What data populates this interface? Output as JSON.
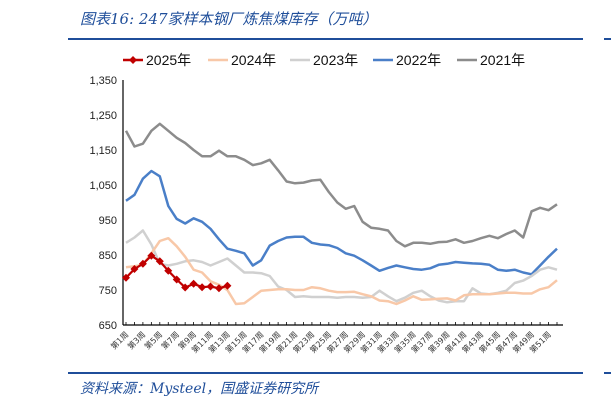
{
  "title": "图表16:  247家样本钢厂炼焦煤库存（万吨）",
  "source": "资料来源：Mysteel，国盛证券研究所",
  "chart_data": {
    "type": "line",
    "title": "247家样本钢厂炼焦煤库存（万吨）",
    "xlabel": "",
    "ylabel": "",
    "ylim": [
      650,
      1350
    ],
    "yticks": [
      "650",
      "750",
      "850",
      "950",
      "1,050",
      "1,150",
      "1,250",
      "1,350"
    ],
    "ytick_values": [
      650,
      750,
      850,
      950,
      1050,
      1150,
      1250,
      1350
    ],
    "xticks": [
      "第1周",
      "第3周",
      "第5周",
      "第7周",
      "第9周",
      "第11周",
      "第13周",
      "第15周",
      "第17周",
      "第19周",
      "第21周",
      "第23周",
      "第25周",
      "第27周",
      "第29周",
      "第31周",
      "第33周",
      "第35周",
      "第37周",
      "第39周",
      "第41周",
      "第43周",
      "第45周",
      "第47周",
      "第49周",
      "第51周"
    ],
    "weeks": 52,
    "legend_position": "top",
    "grid": false,
    "series": [
      {
        "name": "2025年",
        "color": "#c00000",
        "marker": "diamond",
        "values": [
          785,
          810,
          825,
          848,
          832,
          805,
          780,
          757,
          768,
          758,
          760,
          755,
          762
        ]
      },
      {
        "name": "2024年",
        "color": "#f8c8a8",
        "values": [
          815,
          818,
          822,
          855,
          890,
          898,
          875,
          845,
          808,
          800,
          775,
          765,
          750,
          710,
          712,
          730,
          748,
          750,
          752,
          752,
          750,
          750,
          758,
          755,
          748,
          744,
          744,
          745,
          738,
          732,
          720,
          718,
          710,
          720,
          732,
          722,
          723,
          725,
          726,
          720,
          735,
          738,
          738,
          738,
          740,
          742,
          742,
          740,
          740,
          752,
          758,
          778
        ]
      },
      {
        "name": "2023年",
        "color": "#d0d0d0",
        "values": [
          885,
          900,
          920,
          880,
          825,
          820,
          825,
          832,
          835,
          830,
          820,
          830,
          840,
          820,
          800,
          800,
          798,
          790,
          760,
          750,
          730,
          732,
          730,
          730,
          730,
          728,
          730,
          730,
          728,
          730,
          748,
          732,
          718,
          728,
          742,
          748,
          732,
          720,
          715,
          718,
          718,
          755,
          740,
          738,
          742,
          748,
          770,
          777,
          790,
          808,
          815,
          808
        ]
      },
      {
        "name": "2022年",
        "color": "#4a7fc8",
        "values": [
          1005,
          1022,
          1068,
          1090,
          1075,
          990,
          953,
          940,
          955,
          945,
          925,
          895,
          868,
          862,
          855,
          820,
          835,
          877,
          890,
          900,
          902,
          902,
          885,
          880,
          878,
          870,
          855,
          848,
          835,
          820,
          805,
          813,
          820,
          815,
          810,
          808,
          812,
          822,
          825,
          830,
          828,
          826,
          825,
          822,
          808,
          805,
          808,
          800,
          795,
          820,
          845,
          868
        ]
      },
      {
        "name": "2021年",
        "color": "#8c8c8c",
        "values": [
          1205,
          1160,
          1168,
          1205,
          1225,
          1205,
          1185,
          1170,
          1150,
          1132,
          1132,
          1148,
          1132,
          1132,
          1122,
          1107,
          1112,
          1122,
          1092,
          1060,
          1055,
          1057,
          1063,
          1065,
          1030,
          1000,
          982,
          990,
          945,
          928,
          925,
          920,
          890,
          875,
          885,
          885,
          882,
          887,
          888,
          895,
          885,
          890,
          898,
          905,
          898,
          910,
          920,
          900,
          975,
          985,
          978,
          995
        ]
      }
    ]
  }
}
